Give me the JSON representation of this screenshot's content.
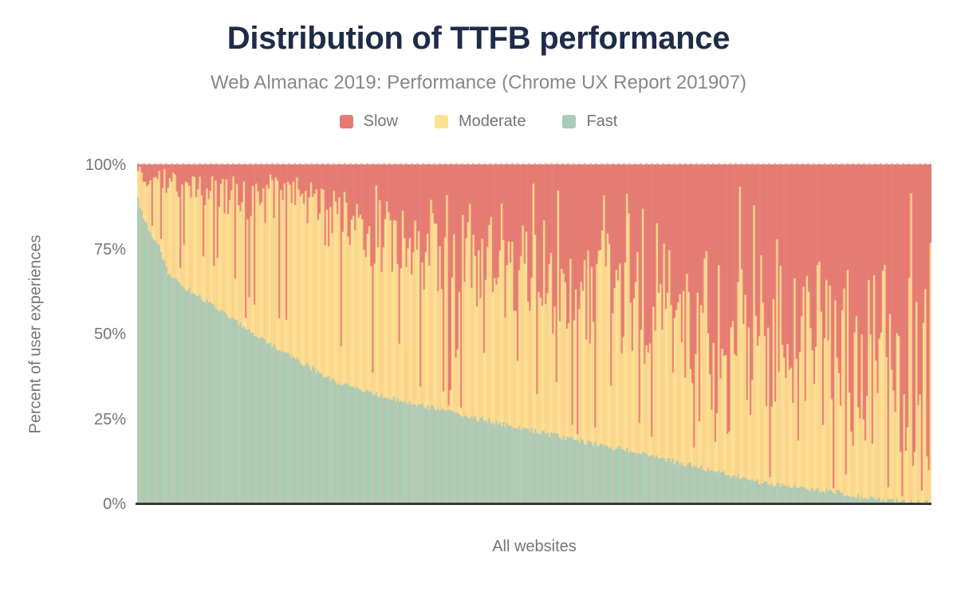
{
  "chart_data": {
    "type": "bar",
    "variant": "stacked-100pct-distribution",
    "title": "Distribution of TTFB performance",
    "subtitle": "Web Almanac 2019: Performance (Chrome UX Report 201907)",
    "xlabel": "All websites",
    "ylabel": "Percent of user experiences",
    "yticks": [
      "100%",
      "75%",
      "50%",
      "25%",
      "0%"
    ],
    "ylim": [
      0,
      100
    ],
    "grid": false,
    "legend_position": "top",
    "series": [
      {
        "name": "Slow",
        "color": "#e57c73"
      },
      {
        "name": "Moderate",
        "color": "#fde293"
      },
      {
        "name": "Fast",
        "color": "#a9ccba"
      }
    ],
    "n_bars": 450,
    "fast_curve": [
      [
        0.0,
        89.5
      ],
      [
        0.006,
        85.0
      ],
      [
        0.015,
        80.0
      ],
      [
        0.026,
        76.0
      ],
      [
        0.032,
        72.0
      ],
      [
        0.038,
        68.0
      ],
      [
        0.06,
        63.5
      ],
      [
        0.088,
        59.3
      ],
      [
        0.139,
        51.1
      ],
      [
        0.189,
        44.0
      ],
      [
        0.249,
        35.8
      ],
      [
        0.329,
        30.3
      ],
      [
        0.45,
        24.0
      ],
      [
        0.53,
        19.8
      ],
      [
        0.66,
        13.4
      ],
      [
        0.781,
        6.4
      ],
      [
        0.881,
        3.3
      ],
      [
        0.921,
        1.5
      ],
      [
        0.97,
        0.5
      ],
      [
        1.0,
        0.2
      ]
    ],
    "moderate_top_curve": [
      [
        0.0,
        97.5
      ],
      [
        0.05,
        94.0
      ],
      [
        0.1,
        91.5
      ],
      [
        0.2,
        88.0
      ],
      [
        0.3,
        79.0
      ],
      [
        0.4,
        72.0
      ],
      [
        0.5,
        68.0
      ],
      [
        0.6,
        62.0
      ],
      [
        0.7,
        55.0
      ],
      [
        0.8,
        50.0
      ],
      [
        0.9,
        45.0
      ],
      [
        1.0,
        42.0
      ]
    ],
    "noise": {
      "seed": 201907,
      "amp_base": 3,
      "amp_slope": 26,
      "dip_prob": 0.11,
      "dip_range": [
        0.02,
        0.45
      ],
      "spike_prob": 0.07,
      "spike_range": [
        0.45,
        0.95
      ],
      "fast_jitter": 1.6
    }
  },
  "colors": {
    "title": "#1f2c49",
    "subtitle": "#878787",
    "axis_text": "#757575",
    "axis_line": "#3a3a3a",
    "gridline": "#d6d6d6",
    "background": "#ffffff"
  }
}
